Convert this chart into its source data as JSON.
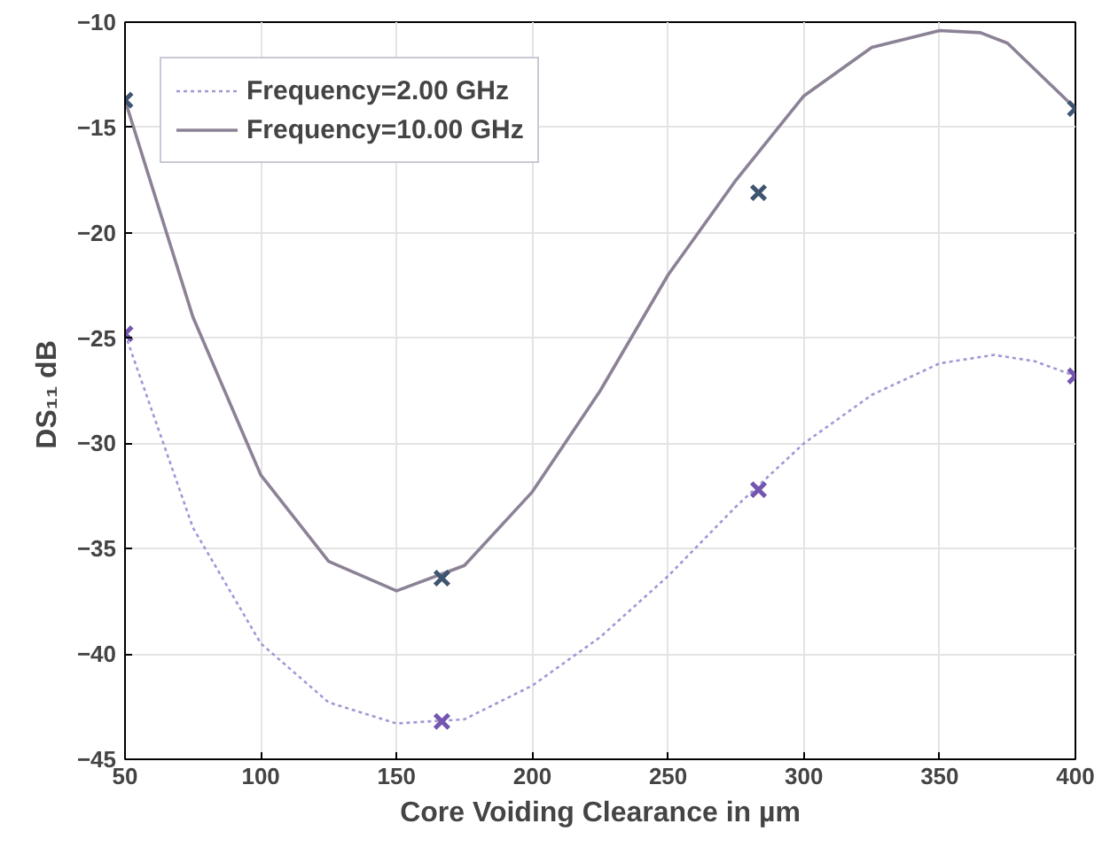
{
  "chart_data": {
    "type": "line",
    "xlabel": "Core Voiding Clearance in µm",
    "ylabel": "DS₁₁  dB",
    "xlim": [
      50,
      400
    ],
    "ylim": [
      -45,
      -10
    ],
    "xticks": [
      50,
      100,
      150,
      200,
      250,
      300,
      350,
      400
    ],
    "yticks": [
      -45,
      -40,
      -35,
      -30,
      -25,
      -20,
      -15,
      -10
    ],
    "grid": true,
    "legend": "top left",
    "series": [
      {
        "name": "Frequency=2.00 GHz",
        "line_style": "dotted",
        "marker": "none",
        "color": "#a496d6",
        "x": [
          50,
          75,
          100,
          125,
          150,
          175,
          200,
          225,
          250,
          275,
          300,
          325,
          350,
          370,
          385,
          400
        ],
        "values": [
          -24.8,
          -34,
          -39.5,
          -42.3,
          -43.3,
          -43.1,
          -41.5,
          -39.2,
          -36.3,
          -33,
          -30,
          -27.7,
          -26.2,
          -25.8,
          -26.1,
          -26.8
        ]
      },
      {
        "name": "Frequency=10.00 GHz",
        "line_style": "solid",
        "marker": "none",
        "color": "#8c8296",
        "x": [
          50,
          75,
          100,
          125,
          150,
          175,
          200,
          225,
          250,
          275,
          300,
          325,
          350,
          365,
          375,
          400
        ],
        "values": [
          -13.7,
          -24,
          -31.5,
          -35.6,
          -37,
          -35.8,
          -32.3,
          -27.5,
          -22,
          -17.5,
          -13.5,
          -11.2,
          -10.4,
          -10.5,
          -11,
          -14.1
        ]
      },
      {
        "type": "scatter",
        "marker": "cross",
        "color": "#7455b0",
        "x": [
          50,
          166.7,
          283.3,
          400
        ],
        "values": [
          -24.8,
          -43.2,
          -32.2,
          -26.8
        ]
      },
      {
        "type": "scatter",
        "marker": "cross",
        "color": "#3e5470",
        "x": [
          50,
          166.7,
          283.3,
          400
        ],
        "values": [
          -13.7,
          -36.4,
          -18.1,
          -14.1
        ]
      }
    ]
  }
}
